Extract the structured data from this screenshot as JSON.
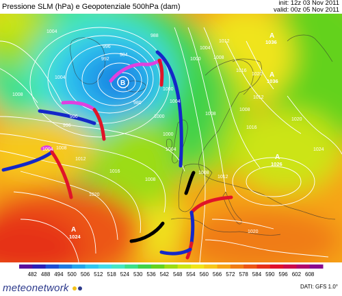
{
  "header": {
    "title": "Pressione SLM (hPa) e Geopotenziale 500hPa (dam)",
    "init": "init: 12z 03 Nov 2011",
    "valid": "valid: 00z 05 Nov 2011"
  },
  "legend": {
    "ticks": [
      "482",
      "488",
      "494",
      "500",
      "506",
      "512",
      "518",
      "524",
      "530",
      "536",
      "542",
      "548",
      "554",
      "560",
      "566",
      "572",
      "578",
      "584",
      "590",
      "596",
      "602",
      "608"
    ],
    "colors": [
      "#5a0f9e",
      "#2a1fb8",
      "#1c4ed4",
      "#1e7ae0",
      "#22a6ea",
      "#30c8f0",
      "#40dcea",
      "#46e6c4",
      "#3ce08a",
      "#40d24a",
      "#64d21e",
      "#9cdc14",
      "#cce412",
      "#f0e41a",
      "#f6c81a",
      "#f6a416",
      "#f07c14",
      "#ec5614",
      "#e63018",
      "#e0102a",
      "#cc0a4a",
      "#b0086c",
      "#8a0a8e"
    ]
  },
  "pressure_centers": [
    {
      "letter": "A",
      "value": "1024"
    },
    {
      "letter": "B",
      "value": ""
    },
    {
      "letter": "A",
      "value": "1026"
    },
    {
      "letter": "A",
      "value": "1036"
    },
    {
      "letter": "A",
      "value": "1036"
    }
  ],
  "isobar_labels": [
    "1004",
    "996",
    "992",
    "984",
    "980",
    "988",
    "996",
    "1000",
    "1004",
    "1008",
    "1004",
    "1008",
    "1012",
    "1016",
    "1020",
    "1000",
    "1004",
    "1008",
    "1012",
    "1016",
    "1020",
    "1000",
    "1008",
    "1004",
    "1008",
    "1012",
    "1016",
    "1020",
    "996",
    "1024",
    "1020",
    "1008",
    "1012",
    "1000",
    "1004",
    "1008"
  ],
  "footer": {
    "logo": "meteonetwork",
    "credit": "DATI: GFS 1.0°"
  },
  "colors": {
    "cold_front": "#1428c8",
    "warm_front": "#e01428",
    "occluded_front": "#e040e0",
    "stationary_front": "#000000"
  }
}
